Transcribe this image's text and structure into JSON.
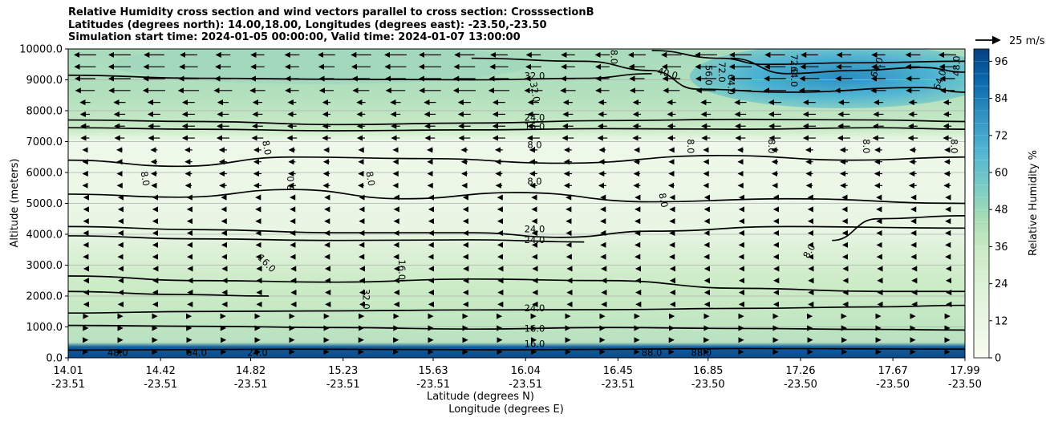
{
  "chart_data": {
    "type": "contour",
    "title_lines": [
      "Relative Humidity cross section and wind vectors parallel to cross section: CrosssectionB",
      "Latitudes (degrees north): 14.00,18.00, Longitudes (degrees east): -23.50,-23.50",
      "Simulation start time: 2024-01-05 00:00:00, Valid time: 2024-01-07 13:00:00"
    ],
    "ylabel": "Altitude (meters)",
    "xlabel_primary": "Latitude (degrees N)",
    "xlabel_secondary": "Longitude (degrees E)",
    "ylim": [
      0,
      10000
    ],
    "yticks": [
      "0.0",
      "1000.0",
      "2000.0",
      "3000.0",
      "4000.0",
      "5000.0",
      "6000.0",
      "7000.0",
      "8000.0",
      "9000.0",
      "10000.0"
    ],
    "ytick_values": [
      0,
      1000,
      2000,
      3000,
      4000,
      5000,
      6000,
      7000,
      8000,
      9000,
      10000
    ],
    "xlim": [
      14.01,
      17.99
    ],
    "xticks": [
      {
        "lat": "14.01",
        "lon": "-23.51",
        "v": 14.01
      },
      {
        "lat": "14.42",
        "lon": "-23.51",
        "v": 14.42
      },
      {
        "lat": "14.82",
        "lon": "-23.51",
        "v": 14.82
      },
      {
        "lat": "15.23",
        "lon": "-23.51",
        "v": 15.23
      },
      {
        "lat": "15.63",
        "lon": "-23.51",
        "v": 15.63
      },
      {
        "lat": "16.04",
        "lon": "-23.51",
        "v": 16.04
      },
      {
        "lat": "16.45",
        "lon": "-23.51",
        "v": 16.45
      },
      {
        "lat": "16.85",
        "lon": "-23.50",
        "v": 16.85
      },
      {
        "lat": "17.26",
        "lon": "-23.50",
        "v": 17.26
      },
      {
        "lat": "17.67",
        "lon": "-23.50",
        "v": 17.67
      },
      {
        "lat": "17.99",
        "lon": "-23.50",
        "v": 17.99
      }
    ],
    "grid": "horizontal",
    "colorbar": {
      "label": "Relative Humidity %",
      "ticks": [
        "0",
        "12",
        "24",
        "36",
        "48",
        "60",
        "72",
        "84",
        "96"
      ],
      "tick_values": [
        0,
        12,
        24,
        36,
        48,
        60,
        72,
        84,
        96
      ],
      "range": [
        0,
        100
      ],
      "levels": 25,
      "colormap": "GnBu"
    },
    "quiver_key": {
      "label": "25 m/s",
      "value": 25
    },
    "contour_lines": [
      {
        "level": 8.0,
        "points": [
          [
            14.01,
            6400
          ],
          [
            14.5,
            6200
          ],
          [
            15.0,
            6500
          ],
          [
            15.6,
            6450
          ],
          [
            16.2,
            6300
          ],
          [
            16.9,
            6550
          ],
          [
            17.5,
            6400
          ],
          [
            17.99,
            6500
          ]
        ]
      },
      {
        "level": 8.0,
        "points": [
          [
            14.01,
            5300
          ],
          [
            14.5,
            5200
          ],
          [
            15.0,
            5450
          ],
          [
            15.5,
            5150
          ],
          [
            16.0,
            5350
          ],
          [
            16.6,
            5050
          ],
          [
            17.2,
            5150
          ],
          [
            17.99,
            5000
          ]
        ]
      },
      {
        "level": 16.0,
        "points": [
          [
            14.01,
            7450
          ],
          [
            14.6,
            7400
          ],
          [
            15.2,
            7350
          ],
          [
            15.8,
            7380
          ],
          [
            16.4,
            7420
          ],
          [
            17.0,
            7400
          ],
          [
            17.6,
            7450
          ],
          [
            17.99,
            7400
          ]
        ]
      },
      {
        "level": 24.0,
        "points": [
          [
            14.01,
            7700
          ],
          [
            14.6,
            7650
          ],
          [
            15.2,
            7550
          ],
          [
            15.8,
            7600
          ],
          [
            16.4,
            7680
          ],
          [
            17.0,
            7720
          ],
          [
            17.6,
            7700
          ],
          [
            17.99,
            7650
          ]
        ]
      },
      {
        "level": 32.0,
        "points": [
          [
            14.01,
            9150
          ],
          [
            14.6,
            9050
          ],
          [
            15.2,
            9020
          ],
          [
            15.8,
            9000
          ],
          [
            16.3,
            9050
          ],
          [
            16.6,
            9200
          ]
        ]
      },
      {
        "level": 24.0,
        "points": [
          [
            14.01,
            4250
          ],
          [
            14.6,
            4150
          ],
          [
            15.2,
            4050
          ],
          [
            15.8,
            4050
          ],
          [
            16.2,
            3900
          ],
          [
            16.6,
            4100
          ],
          [
            17.2,
            4250
          ],
          [
            17.99,
            4200
          ]
        ]
      },
      {
        "level": 24.0,
        "points": [
          [
            14.01,
            3950
          ],
          [
            14.6,
            3850
          ],
          [
            15.2,
            3800
          ],
          [
            15.8,
            3820
          ],
          [
            16.3,
            3750
          ]
        ]
      },
      {
        "level": 16.0,
        "points": [
          [
            14.01,
            2650
          ],
          [
            14.6,
            2500
          ],
          [
            15.2,
            2450
          ],
          [
            15.8,
            2550
          ],
          [
            16.4,
            2500
          ],
          [
            17.0,
            2250
          ],
          [
            17.6,
            2150
          ],
          [
            17.99,
            2150
          ]
        ]
      },
      {
        "level": 32.0,
        "points": [
          [
            14.01,
            2150
          ],
          [
            14.5,
            2050
          ],
          [
            14.9,
            2000
          ]
        ]
      },
      {
        "level": 24.0,
        "points": [
          [
            14.01,
            1450
          ],
          [
            14.6,
            1500
          ],
          [
            15.2,
            1520
          ],
          [
            15.8,
            1550
          ],
          [
            16.4,
            1560
          ],
          [
            17.0,
            1600
          ],
          [
            17.6,
            1650
          ],
          [
            17.99,
            1700
          ]
        ]
      },
      {
        "level": 16.0,
        "points": [
          [
            14.01,
            1050
          ],
          [
            14.6,
            1020
          ],
          [
            15.2,
            980
          ],
          [
            15.8,
            930
          ],
          [
            16.4,
            980
          ],
          [
            17.0,
            950
          ],
          [
            17.6,
            920
          ],
          [
            17.99,
            900
          ]
        ]
      },
      {
        "level": 40.0,
        "points": [
          [
            15.8,
            9700
          ],
          [
            16.3,
            9600
          ],
          [
            16.6,
            9300
          ],
          [
            16.8,
            8700
          ],
          [
            17.2,
            8600
          ],
          [
            17.8,
            8750
          ],
          [
            17.99,
            8600
          ]
        ]
      },
      {
        "level": 48.0,
        "points": [
          [
            16.6,
            9950
          ],
          [
            16.9,
            9700
          ],
          [
            17.1,
            9500
          ],
          [
            17.5,
            9550
          ],
          [
            17.99,
            9600
          ]
        ]
      },
      {
        "level": 64.0,
        "points": [
          [
            16.95,
            9700
          ],
          [
            17.2,
            9200
          ],
          [
            17.5,
            9300
          ],
          [
            17.8,
            9400
          ],
          [
            17.99,
            9250
          ]
        ]
      },
      {
        "level": 8.0,
        "points": [
          [
            17.4,
            3800
          ],
          [
            17.6,
            4500
          ],
          [
            17.99,
            4600
          ]
        ]
      },
      {
        "level": 88.0,
        "points": [
          [
            14.01,
            250
          ],
          [
            15.0,
            280
          ],
          [
            16.0,
            260
          ],
          [
            17.0,
            300
          ],
          [
            17.99,
            280
          ]
        ]
      }
    ],
    "contour_labels": [
      {
        "text": "32.0",
        "x": 16.08,
        "y": 9120,
        "rot": 0
      },
      {
        "text": "40.0",
        "x": 16.67,
        "y": 9200,
        "rot": 15
      },
      {
        "text": "32.0",
        "x": 16.08,
        "y": 8600,
        "rot": 80
      },
      {
        "text": "24.0",
        "x": 16.08,
        "y": 7760,
        "rot": 0
      },
      {
        "text": "16.0",
        "x": 16.08,
        "y": 7480,
        "rot": 0
      },
      {
        "text": "8.0",
        "x": 16.08,
        "y": 6880,
        "rot": 0
      },
      {
        "text": "8.0",
        "x": 16.08,
        "y": 5700,
        "rot": 0
      },
      {
        "text": "8.0",
        "x": 14.89,
        "y": 6800,
        "rot": 80
      },
      {
        "text": "8.0",
        "x": 14.35,
        "y": 5800,
        "rot": 80
      },
      {
        "text": "8.0",
        "x": 15.0,
        "y": 5650,
        "rot": -90
      },
      {
        "text": "8.0",
        "x": 15.35,
        "y": 5800,
        "rot": 80
      },
      {
        "text": "8.0",
        "x": 16.77,
        "y": 6850,
        "rot": 90
      },
      {
        "text": "8.0",
        "x": 17.13,
        "y": 6850,
        "rot": 90
      },
      {
        "text": "8.0",
        "x": 17.55,
        "y": 6850,
        "rot": 90
      },
      {
        "text": "8.0",
        "x": 17.94,
        "y": 6850,
        "rot": 90
      },
      {
        "text": "8.0",
        "x": 16.65,
        "y": 5100,
        "rot": 80
      },
      {
        "text": "8.0",
        "x": 17.3,
        "y": 3450,
        "rot": -60
      },
      {
        "text": "8.0",
        "x": 16.43,
        "y": 9850,
        "rot": 90
      },
      {
        "text": "24.0",
        "x": 16.08,
        "y": 4150,
        "rot": 0
      },
      {
        "text": "24.0",
        "x": 16.08,
        "y": 3800,
        "rot": 0
      },
      {
        "text": "16.0",
        "x": 14.89,
        "y": 3050,
        "rot": 45
      },
      {
        "text": "16.0",
        "x": 15.49,
        "y": 2850,
        "rot": 90
      },
      {
        "text": "32.0",
        "x": 15.33,
        "y": 1900,
        "rot": 90
      },
      {
        "text": "24.0",
        "x": 16.08,
        "y": 1600,
        "rot": 0
      },
      {
        "text": "16.0",
        "x": 16.08,
        "y": 930,
        "rot": 0
      },
      {
        "text": "16.0",
        "x": 16.08,
        "y": 440,
        "rot": 0
      },
      {
        "text": "72.0",
        "x": 17.23,
        "y": 9500,
        "rot": 90
      },
      {
        "text": "64.0",
        "x": 17.23,
        "y": 9100,
        "rot": 90
      },
      {
        "text": "64.0",
        "x": 16.95,
        "y": 8850,
        "rot": 90
      },
      {
        "text": "72.0",
        "x": 16.91,
        "y": 9250,
        "rot": 90
      },
      {
        "text": "56.0",
        "x": 16.85,
        "y": 9150,
        "rot": 90
      },
      {
        "text": "64.0",
        "x": 17.6,
        "y": 9400,
        "rot": -70
      },
      {
        "text": "64.0",
        "x": 17.88,
        "y": 9000,
        "rot": -70
      },
      {
        "text": "48.0",
        "x": 18.0,
        "y": 9450,
        "rot": -90
      },
      {
        "text": "48.0",
        "x": 14.23,
        "y": 60,
        "rot": 0
      },
      {
        "text": "64.0",
        "x": 14.58,
        "y": 60,
        "rot": 0
      },
      {
        "text": "24.0",
        "x": 14.85,
        "y": 60,
        "rot": 0
      },
      {
        "text": "88.0",
        "x": 16.6,
        "y": 30,
        "rot": 0
      },
      {
        "text": "88.0",
        "x": 16.82,
        "y": 30,
        "rot": 0
      }
    ],
    "rh_field_description_layers": [
      {
        "bottom": 0,
        "top": 400,
        "rh": 90
      },
      {
        "bottom": 400,
        "top": 1100,
        "rh": 26
      },
      {
        "bottom": 1100,
        "top": 2300,
        "rh": 24
      },
      {
        "bottom": 2300,
        "top": 4000,
        "rh": 18
      },
      {
        "bottom": 4000,
        "top": 7300,
        "rh": 6
      },
      {
        "bottom": 7300,
        "top": 8300,
        "rh": 22
      },
      {
        "bottom": 8300,
        "top": 10000,
        "rh": 34
      }
    ]
  }
}
